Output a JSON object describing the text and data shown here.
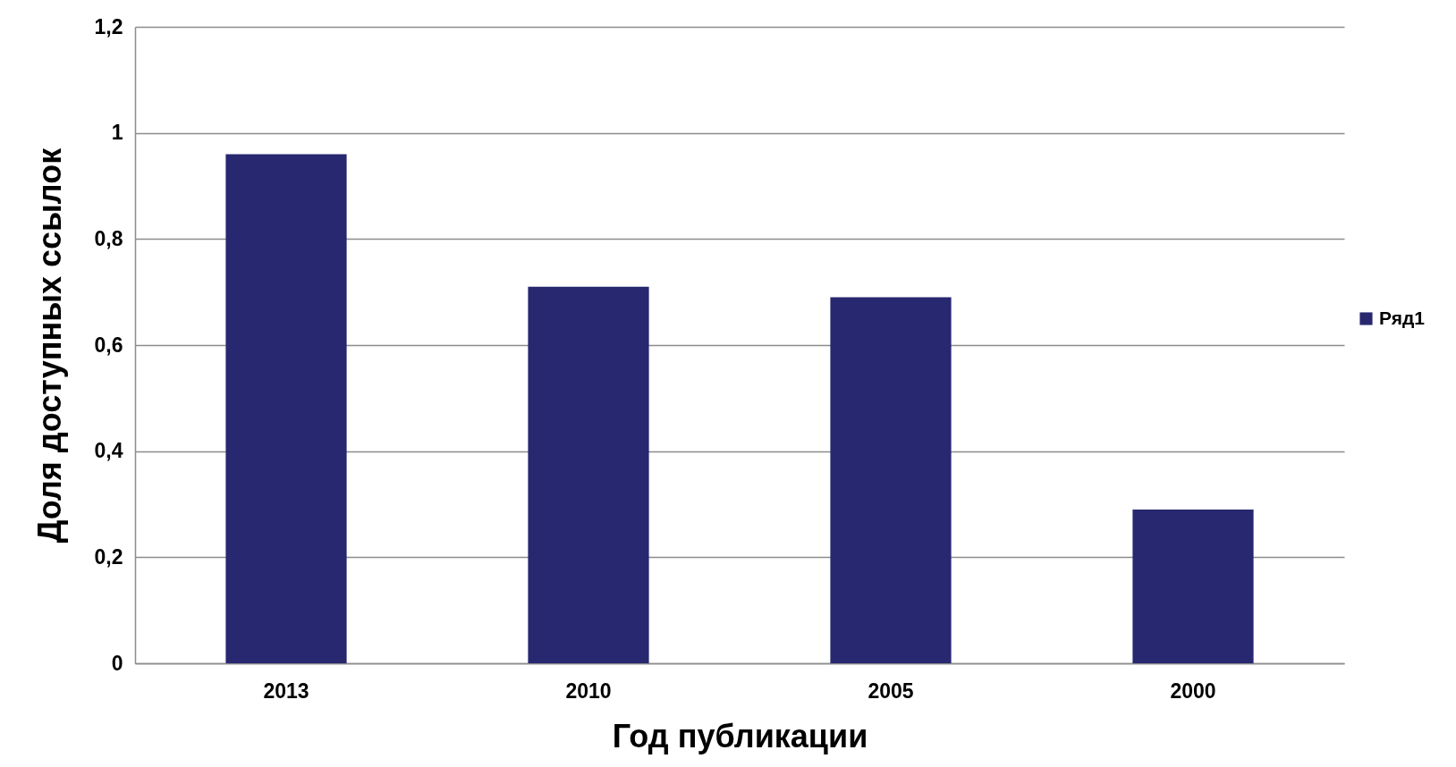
{
  "chart_data": {
    "type": "bar",
    "xlabel": "Год публикации",
    "ylabel": "Доля доступных ссылок",
    "categories": [
      "2013",
      "2010",
      "2005",
      "2000"
    ],
    "series": [
      {
        "name": "Ряд1",
        "color": "#282870",
        "values": [
          0.96,
          0.71,
          0.69,
          0.29
        ]
      }
    ],
    "ylim": [
      0,
      1.2
    ],
    "yticks": [
      0,
      {
        "value": 0.2,
        "label": "0,2"
      },
      {
        "value": 0.4,
        "label": "0,4"
      },
      {
        "value": 0.6,
        "label": "0,6"
      },
      {
        "value": 0.8,
        "label": "0,8"
      },
      1,
      {
        "value": 1.2,
        "label": "1,2"
      }
    ],
    "grid": "y",
    "legend": "right"
  }
}
